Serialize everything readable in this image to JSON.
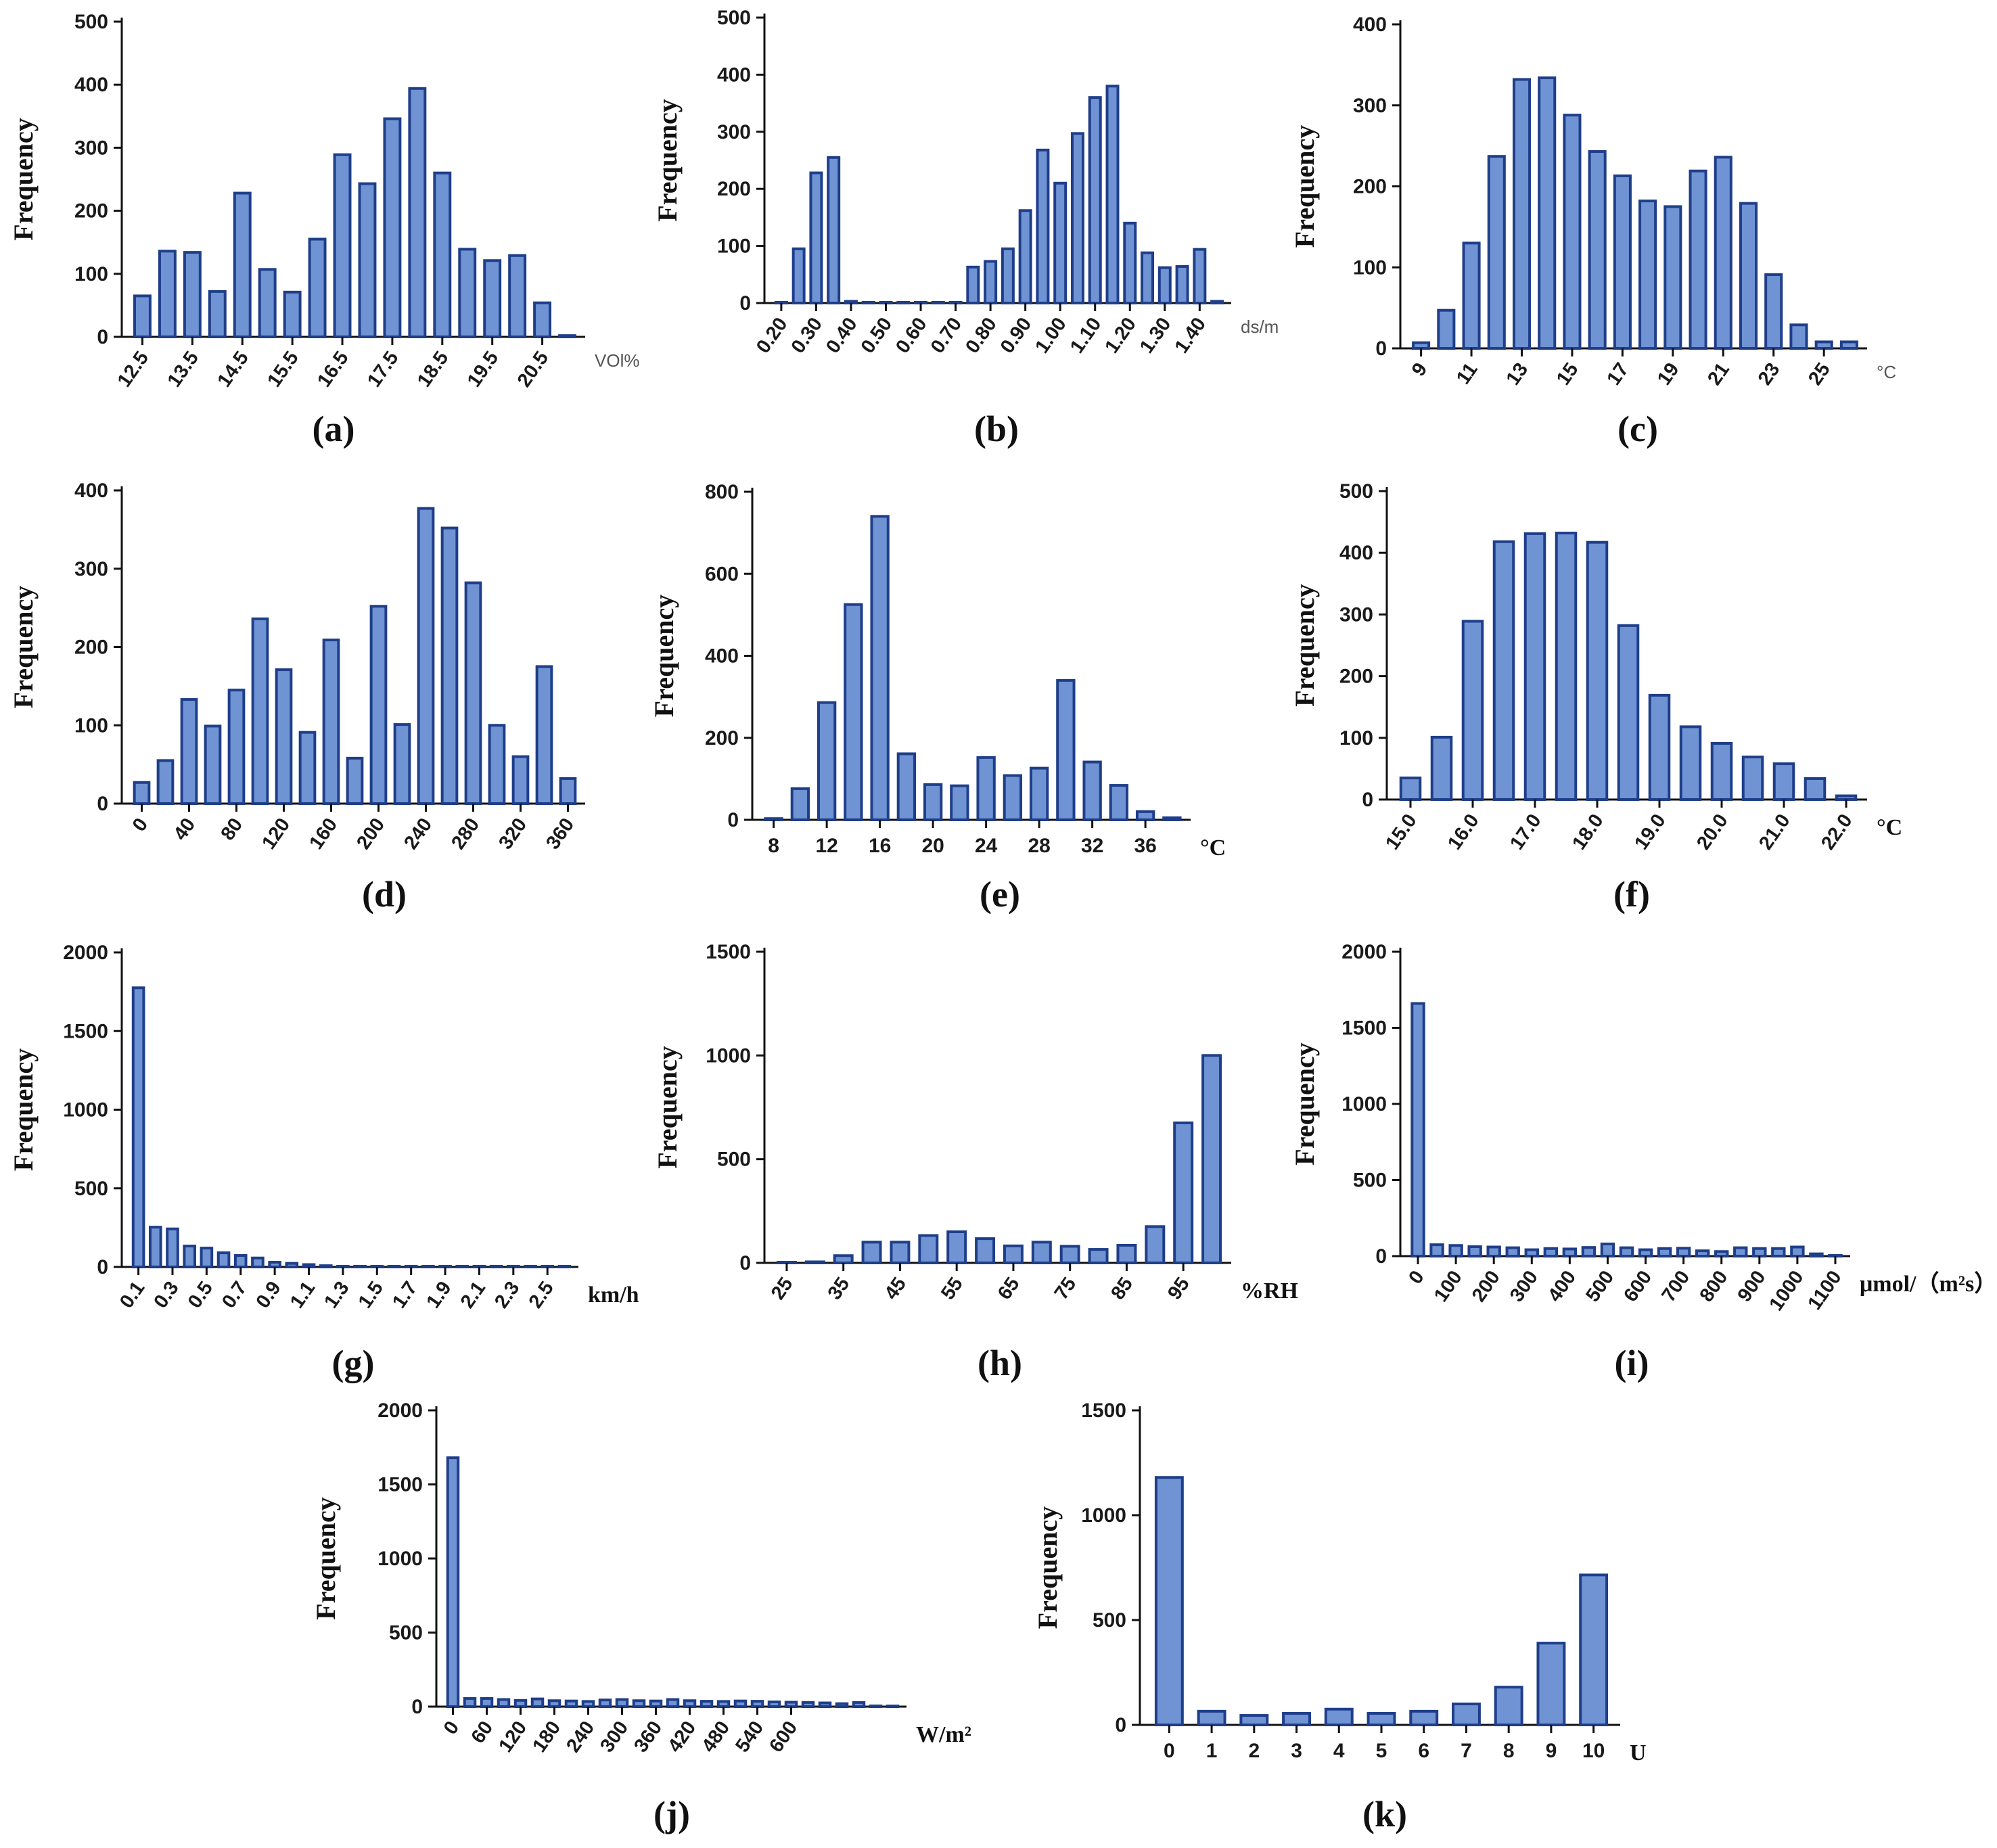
{
  "colors": {
    "bar_fill": "#6f93d3",
    "bar_stroke": "#1f3e8a"
  },
  "chart_data": [
    {
      "id": "a",
      "panel_label": "(a)",
      "type": "bar",
      "ylabel": "Frequency",
      "xunit": "VOl%",
      "unit_style": "sans",
      "ylim": [
        0,
        500
      ],
      "yticks": [
        0,
        100,
        200,
        300,
        400,
        500
      ],
      "tick_rotation": -55,
      "xticks": [
        {
          "i": 0,
          "label": "12.5"
        },
        {
          "i": 2,
          "label": "13.5"
        },
        {
          "i": 4,
          "label": "14.5"
        },
        {
          "i": 6,
          "label": "15.5"
        },
        {
          "i": 8,
          "label": "16.5"
        },
        {
          "i": 10,
          "label": "17.5"
        },
        {
          "i": 12,
          "label": "18.5"
        },
        {
          "i": 14,
          "label": "19.5"
        },
        {
          "i": 16,
          "label": "20.5"
        }
      ],
      "values": [
        65,
        136,
        134,
        72,
        228,
        107,
        71,
        155,
        289,
        243,
        346,
        394,
        260,
        139,
        121,
        129,
        54,
        2
      ]
    },
    {
      "id": "b",
      "panel_label": "(b)",
      "type": "bar",
      "ylabel": "Frequency",
      "xunit": "ds/m",
      "unit_style": "sans",
      "ylim": [
        0,
        500
      ],
      "yticks": [
        0,
        100,
        200,
        300,
        400,
        500
      ],
      "tick_rotation": -55,
      "xticks": [
        {
          "i": 0,
          "label": "0.20"
        },
        {
          "i": 2,
          "label": "0.30"
        },
        {
          "i": 4,
          "label": "0.40"
        },
        {
          "i": 6,
          "label": "0.50"
        },
        {
          "i": 8,
          "label": "0.60"
        },
        {
          "i": 10,
          "label": "0.70"
        },
        {
          "i": 12,
          "label": "0.80"
        },
        {
          "i": 14,
          "label": "0.90"
        },
        {
          "i": 16,
          "label": "1.00"
        },
        {
          "i": 18,
          "label": "1.10"
        },
        {
          "i": 20,
          "label": "1.20"
        },
        {
          "i": 22,
          "label": "1.30"
        },
        {
          "i": 24,
          "label": "1.40"
        }
      ],
      "values": [
        0,
        95,
        228,
        255,
        3,
        0,
        0,
        0,
        0,
        0,
        0,
        63,
        73,
        95,
        162,
        268,
        210,
        297,
        360,
        380,
        140,
        88,
        62,
        64,
        94,
        3
      ]
    },
    {
      "id": "c",
      "panel_label": "(c)",
      "type": "bar",
      "ylabel": "Frequency",
      "xunit": "°C",
      "unit_style": "sans",
      "ylim": [
        0,
        400
      ],
      "yticks": [
        0,
        100,
        200,
        300,
        400
      ],
      "tick_rotation": -55,
      "xticks": [
        {
          "i": 0,
          "label": "9"
        },
        {
          "i": 2,
          "label": "11"
        },
        {
          "i": 4,
          "label": "13"
        },
        {
          "i": 6,
          "label": "15"
        },
        {
          "i": 8,
          "label": "17"
        },
        {
          "i": 10,
          "label": "19"
        },
        {
          "i": 12,
          "label": "21"
        },
        {
          "i": 14,
          "label": "23"
        },
        {
          "i": 16,
          "label": "25"
        }
      ],
      "values": [
        7,
        47,
        130,
        237,
        332,
        334,
        288,
        243,
        213,
        182,
        175,
        219,
        236,
        179,
        91,
        29,
        8,
        8
      ]
    },
    {
      "id": "d",
      "panel_label": "(d)",
      "type": "bar",
      "ylabel": "Frequency",
      "xunit": "",
      "unit_style": "serif",
      "ylim": [
        0,
        400
      ],
      "yticks": [
        0,
        100,
        200,
        300,
        400
      ],
      "tick_rotation": -55,
      "xticks": [
        {
          "i": 0,
          "label": "0"
        },
        {
          "i": 2,
          "label": "40"
        },
        {
          "i": 4,
          "label": "80"
        },
        {
          "i": 6,
          "label": "120"
        },
        {
          "i": 8,
          "label": "160"
        },
        {
          "i": 10,
          "label": "200"
        },
        {
          "i": 12,
          "label": "240"
        },
        {
          "i": 14,
          "label": "280"
        },
        {
          "i": 16,
          "label": "320"
        },
        {
          "i": 18,
          "label": "360"
        }
      ],
      "values": [
        27,
        55,
        133,
        99,
        145,
        236,
        171,
        91,
        209,
        58,
        252,
        101,
        377,
        352,
        282,
        100,
        60,
        175,
        32
      ]
    },
    {
      "id": "e",
      "panel_label": "(e)",
      "type": "bar",
      "ylabel": "Frequency",
      "xunit": "°C",
      "unit_style": "serif",
      "ylim": [
        0,
        800
      ],
      "yticks": [
        0,
        200,
        400,
        600,
        800
      ],
      "tick_rotation": 0,
      "xticks": [
        {
          "i": 0,
          "label": "8"
        },
        {
          "i": 2,
          "label": "12"
        },
        {
          "i": 4,
          "label": "16"
        },
        {
          "i": 6,
          "label": "20"
        },
        {
          "i": 8,
          "label": "24"
        },
        {
          "i": 10,
          "label": "28"
        },
        {
          "i": 12,
          "label": "32"
        },
        {
          "i": 14,
          "label": "36"
        }
      ],
      "values": [
        3,
        76,
        286,
        525,
        740,
        161,
        86,
        83,
        152,
        108,
        126,
        340,
        141,
        84,
        20,
        5
      ]
    },
    {
      "id": "f",
      "panel_label": "(f)",
      "type": "bar",
      "ylabel": "Frequency",
      "xunit": "°C",
      "unit_style": "serif",
      "ylim": [
        0,
        500
      ],
      "yticks": [
        0,
        100,
        200,
        300,
        400,
        500
      ],
      "tick_rotation": -55,
      "xticks": [
        {
          "i": 0,
          "label": "15.0"
        },
        {
          "i": 2,
          "label": "16.0"
        },
        {
          "i": 4,
          "label": "17.0"
        },
        {
          "i": 6,
          "label": "18.0"
        },
        {
          "i": 8,
          "label": "19.0"
        },
        {
          "i": 10,
          "label": "20.0"
        },
        {
          "i": 12,
          "label": "21.0"
        },
        {
          "i": 14,
          "label": "22.0"
        }
      ],
      "values": [
        35,
        101,
        289,
        418,
        431,
        432,
        417,
        282,
        169,
        118,
        91,
        69,
        58,
        34,
        6
      ]
    },
    {
      "id": "g",
      "panel_label": "(g)",
      "type": "bar",
      "ylabel": "Frequency",
      "xunit": "km/h",
      "unit_style": "serif",
      "ylim": [
        0,
        2000
      ],
      "yticks": [
        0,
        500,
        1000,
        1500,
        2000
      ],
      "tick_rotation": -55,
      "xticks": [
        {
          "i": 0,
          "label": "0.1"
        },
        {
          "i": 2,
          "label": "0.3"
        },
        {
          "i": 4,
          "label": "0.5"
        },
        {
          "i": 6,
          "label": "0.7"
        },
        {
          "i": 8,
          "label": "0.9"
        },
        {
          "i": 10,
          "label": "1.1"
        },
        {
          "i": 12,
          "label": "1.3"
        },
        {
          "i": 14,
          "label": "1.5"
        },
        {
          "i": 16,
          "label": "1.7"
        },
        {
          "i": 18,
          "label": "1.9"
        },
        {
          "i": 20,
          "label": "2.1"
        },
        {
          "i": 22,
          "label": "2.3"
        },
        {
          "i": 24,
          "label": "2.5"
        }
      ],
      "values": [
        1775,
        253,
        242,
        133,
        120,
        90,
        73,
        57,
        30,
        23,
        15,
        8,
        3,
        2,
        2,
        2,
        2,
        2,
        2,
        2,
        2,
        2,
        2,
        2,
        2,
        2
      ]
    },
    {
      "id": "h",
      "panel_label": "(h)",
      "type": "bar",
      "ylabel": "Frequency",
      "xunit": "%RH",
      "unit_style": "serif",
      "ylim": [
        0,
        1500
      ],
      "yticks": [
        0,
        500,
        1000,
        1500
      ],
      "tick_rotation": -55,
      "xticks": [
        {
          "i": 0,
          "label": "25"
        },
        {
          "i": 2,
          "label": "35"
        },
        {
          "i": 4,
          "label": "45"
        },
        {
          "i": 6,
          "label": "55"
        },
        {
          "i": 8,
          "label": "65"
        },
        {
          "i": 10,
          "label": "75"
        },
        {
          "i": 12,
          "label": "85"
        },
        {
          "i": 14,
          "label": "95"
        }
      ],
      "values": [
        2,
        5,
        35,
        100,
        100,
        132,
        150,
        117,
        82,
        100,
        80,
        65,
        85,
        175,
        675,
        1000
      ]
    },
    {
      "id": "i",
      "panel_label": "(i)",
      "type": "bar",
      "ylabel": "Frequency",
      "xunit": "μmol/（m²s）",
      "unit_style": "serif",
      "ylim": [
        0,
        2000
      ],
      "yticks": [
        0,
        500,
        1000,
        1500,
        2000
      ],
      "tick_rotation": -55,
      "xticks": [
        {
          "i": 0,
          "label": "0"
        },
        {
          "i": 2,
          "label": "100"
        },
        {
          "i": 4,
          "label": "200"
        },
        {
          "i": 6,
          "label": "300"
        },
        {
          "i": 8,
          "label": "400"
        },
        {
          "i": 10,
          "label": "500"
        },
        {
          "i": 12,
          "label": "600"
        },
        {
          "i": 14,
          "label": "700"
        },
        {
          "i": 16,
          "label": "800"
        },
        {
          "i": 18,
          "label": "900"
        },
        {
          "i": 20,
          "label": "1000"
        },
        {
          "i": 22,
          "label": "1100"
        }
      ],
      "values": [
        1660,
        75,
        70,
        62,
        60,
        55,
        42,
        50,
        47,
        57,
        80,
        55,
        42,
        50,
        52,
        35,
        30,
        55,
        50,
        50,
        60,
        15,
        3
      ]
    },
    {
      "id": "j",
      "panel_label": "(j)",
      "type": "bar",
      "ylabel": "Frequency",
      "xunit": "W/m²",
      "unit_style": "serif",
      "ylim": [
        0,
        2000
      ],
      "yticks": [
        0,
        500,
        1000,
        1500,
        2000
      ],
      "tick_rotation": -55,
      "xticks": [
        {
          "i": 0,
          "label": "0"
        },
        {
          "i": 2,
          "label": "60"
        },
        {
          "i": 4,
          "label": "120"
        },
        {
          "i": 6,
          "label": "180"
        },
        {
          "i": 8,
          "label": "240"
        },
        {
          "i": 10,
          "label": "300"
        },
        {
          "i": 12,
          "label": "360"
        },
        {
          "i": 14,
          "label": "420"
        },
        {
          "i": 16,
          "label": "480"
        },
        {
          "i": 18,
          "label": "540"
        },
        {
          "i": 20,
          "label": "600"
        }
      ],
      "values": [
        1680,
        55,
        55,
        48,
        42,
        52,
        40,
        38,
        35,
        45,
        48,
        40,
        38,
        48,
        40,
        36,
        35,
        38,
        36,
        32,
        30,
        28,
        25,
        20,
        28,
        5,
        2
      ]
    },
    {
      "id": "k",
      "panel_label": "(k)",
      "type": "bar",
      "ylabel": "Frequency",
      "xunit": "U",
      "unit_style": "serif",
      "ylim": [
        0,
        1500
      ],
      "yticks": [
        0,
        500,
        1000,
        1500
      ],
      "tick_rotation": 0,
      "xticks": [
        {
          "i": 0,
          "label": "0"
        },
        {
          "i": 1,
          "label": "1"
        },
        {
          "i": 2,
          "label": "2"
        },
        {
          "i": 3,
          "label": "3"
        },
        {
          "i": 4,
          "label": "4"
        },
        {
          "i": 5,
          "label": "5"
        },
        {
          "i": 6,
          "label": "6"
        },
        {
          "i": 7,
          "label": "7"
        },
        {
          "i": 8,
          "label": "8"
        },
        {
          "i": 9,
          "label": "9"
        },
        {
          "i": 10,
          "label": "10"
        }
      ],
      "values": [
        1180,
        65,
        45,
        55,
        75,
        55,
        65,
        100,
        180,
        390,
        715
      ]
    }
  ]
}
